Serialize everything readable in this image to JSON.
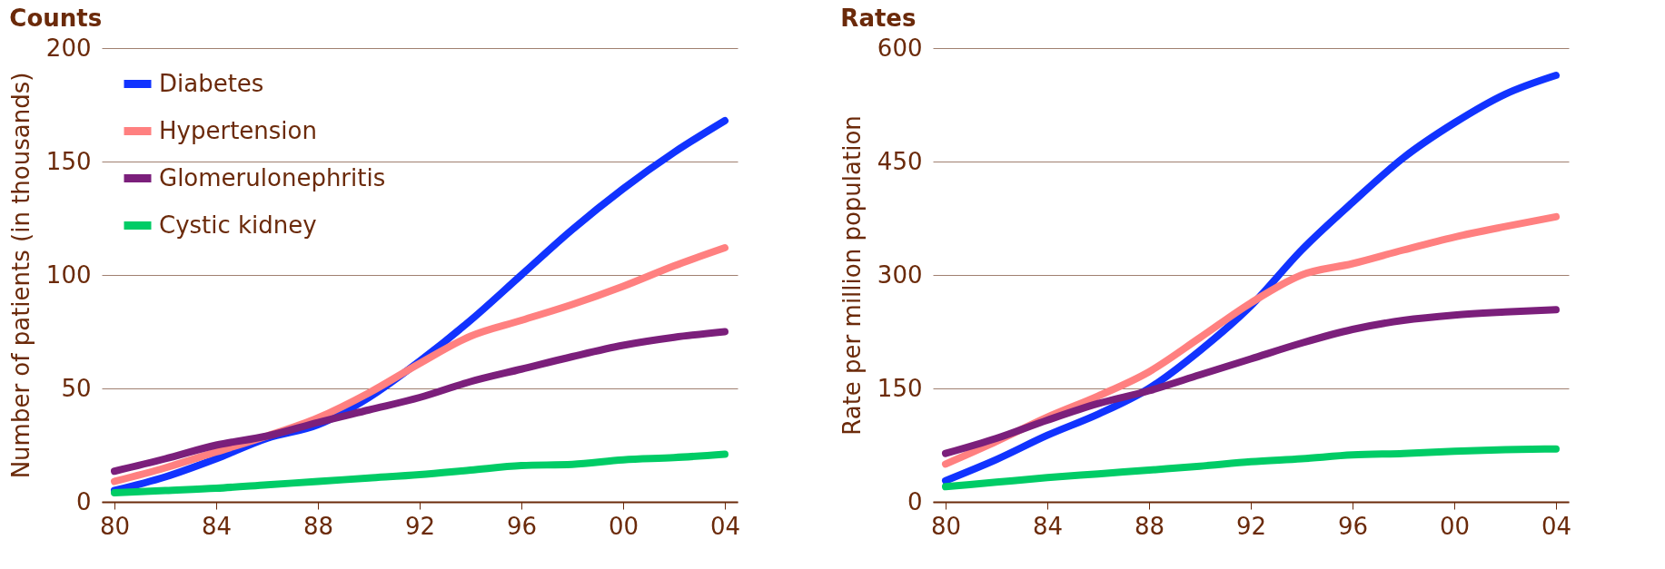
{
  "chart_data": [
    {
      "type": "line",
      "title": "Counts",
      "ylabel": "Number of patients (in thousands)",
      "x": [
        1980,
        1982,
        1984,
        1986,
        1988,
        1990,
        1992,
        1994,
        1996,
        1998,
        2000,
        2002,
        2004
      ],
      "series": [
        {
          "name": "Diabetes",
          "color": "#1133ff",
          "values": [
            5,
            11,
            19,
            28,
            34,
            46,
            62,
            80,
            100,
            120,
            138,
            154,
            168
          ]
        },
        {
          "name": "Hypertension",
          "color": "#ff8080",
          "values": [
            9,
            15,
            22,
            29,
            37,
            48,
            61,
            73,
            80,
            87,
            95,
            104,
            112
          ]
        },
        {
          "name": "Glomerulonephritis",
          "color": "#7b1f7b",
          "values": [
            13.5,
            19,
            25,
            29,
            35,
            40.5,
            46,
            53,
            58.5,
            64,
            69,
            72.5,
            75
          ]
        },
        {
          "name": "Cystic kidney",
          "color": "#00cc66",
          "values": [
            4,
            5,
            6,
            7.5,
            9,
            10.5,
            12,
            14,
            16,
            16.5,
            18.5,
            19.5,
            21
          ]
        }
      ],
      "xlim": [
        1979.5,
        2004.5
      ],
      "xticks": [
        {
          "value": 1980,
          "label": "80"
        },
        {
          "value": 1984,
          "label": "84"
        },
        {
          "value": 1988,
          "label": "88"
        },
        {
          "value": 1992,
          "label": "92"
        },
        {
          "value": 1996,
          "label": "96"
        },
        {
          "value": 2000,
          "label": "00"
        },
        {
          "value": 2004,
          "label": "04"
        }
      ],
      "ylim": [
        0,
        200
      ],
      "yticks": [
        0,
        50,
        100,
        150,
        200
      ],
      "grid": "y",
      "legend": "top left"
    },
    {
      "type": "line",
      "title": "Rates",
      "ylabel": "Rate per million population",
      "x": [
        1980,
        1982,
        1984,
        1986,
        1988,
        1990,
        1992,
        1994,
        1996,
        1998,
        2000,
        2002,
        2004
      ],
      "series": [
        {
          "color": "#1133ff",
          "values": [
            28,
            56,
            88,
            116,
            150,
            200,
            259,
            333,
            396,
            455,
            501,
            539,
            564
          ]
        },
        {
          "color": "#ff8080",
          "values": [
            50,
            80,
            112,
            140,
            172,
            217,
            263,
            300,
            315,
            333,
            350,
            364,
            377
          ]
        },
        {
          "color": "#7b1f7b",
          "values": [
            64,
            84,
            108,
            130,
            147,
            168,
            189,
            210,
            228,
            240,
            247,
            251,
            254
          ]
        },
        {
          "color": "#00cc66",
          "values": [
            20,
            26,
            32,
            37,
            42,
            47,
            53,
            57,
            62,
            64,
            67,
            69,
            70
          ]
        }
      ],
      "xlim": [
        1979.5,
        2004.5
      ],
      "xticks": [
        {
          "value": 1980,
          "label": "80"
        },
        {
          "value": 1984,
          "label": "84"
        },
        {
          "value": 1988,
          "label": "88"
        },
        {
          "value": 1992,
          "label": "92"
        },
        {
          "value": 1996,
          "label": "96"
        },
        {
          "value": 2000,
          "label": "00"
        },
        {
          "value": 2004,
          "label": "04"
        }
      ],
      "ylim": [
        0,
        600
      ],
      "yticks": [
        0,
        150,
        300,
        450,
        600
      ],
      "grid": "y",
      "legend": false
    }
  ]
}
